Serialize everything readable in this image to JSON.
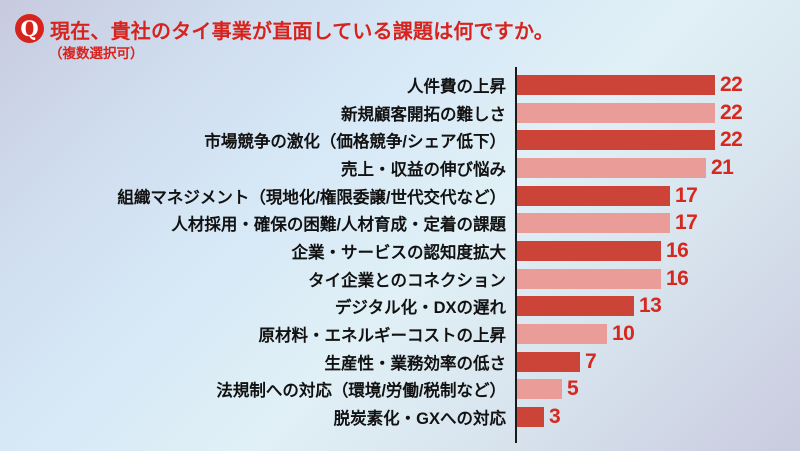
{
  "header": {
    "q_badge": "Q",
    "title": "現在、貴社のタイ事業が直面している課題は何ですか。",
    "subtitle": "（複数選択可）"
  },
  "chart_data": {
    "type": "bar",
    "orientation": "horizontal",
    "title": "現在、貴社のタイ事業が直面している課題は何ですか。（複数選択可）",
    "categories": [
      "人件費の上昇",
      "新規顧客開拓の難しさ",
      "市場競争の激化（価格競争/シェア低下）",
      "売上・収益の伸び悩み",
      "組織マネジメント（現地化/権限委譲/世代交代など）",
      "人材採用・確保の困難/人材育成・定着の課題",
      "企業・サービスの認知度拡大",
      "タイ企業とのコネクション",
      "デジタル化・DXの遅れ",
      "原材料・エネルギーコストの上昇",
      "生産性・業務効率の低さ",
      "法規制への対応（環境/労働/税制など）",
      "脱炭素化・GXへの対応"
    ],
    "values": [
      22,
      22,
      22,
      21,
      17,
      17,
      16,
      16,
      13,
      10,
      7,
      5,
      3
    ],
    "xlim": [
      0,
      22
    ],
    "grid": false,
    "legend": false,
    "value_labels": "end-of-bar",
    "bar_colors_alternate": [
      "#cc4438",
      "#ea9c98"
    ]
  },
  "style": {
    "accent_red": "#d7231d",
    "value_label_color": "#d7281e",
    "bar_dark": "#cc4438",
    "bar_light": "#ea9c98",
    "axis_color": "#1a1a1a",
    "label_color": "#121212"
  }
}
